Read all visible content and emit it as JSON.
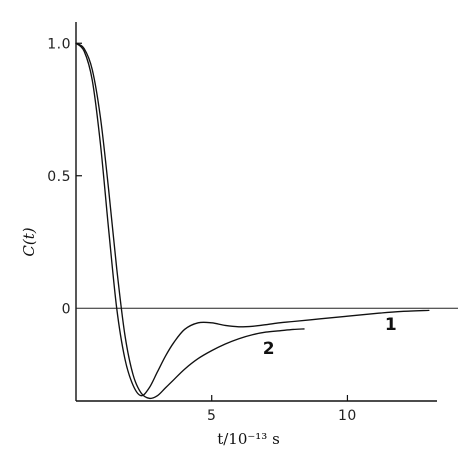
{
  "chart_data": {
    "type": "line",
    "title": "",
    "xlabel": "t/10⁻¹³ s",
    "ylabel": "C(t)",
    "xlim": [
      0,
      13.3
    ],
    "ylim": [
      -0.35,
      1.05
    ],
    "grid": false,
    "x_ticks": [
      {
        "value": 5,
        "label": "5"
      },
      {
        "value": 10,
        "label": "10"
      }
    ],
    "y_ticks": [
      {
        "value": 1.0,
        "label": "1.0"
      },
      {
        "value": 0.5,
        "label": "0.5"
      },
      {
        "value": 0.0,
        "label": "0"
      }
    ],
    "series": [
      {
        "name": "1",
        "x": [
          0,
          0.3,
          0.6,
          0.9,
          1.2,
          1.5,
          1.8,
          2.1,
          2.4,
          2.7,
          3.0,
          3.3,
          3.6,
          4.0,
          4.5,
          5.0,
          5.5,
          6.0,
          6.5,
          7.0,
          7.5,
          8.0,
          9.0,
          10.0,
          11.0,
          12.0,
          13.0
        ],
        "y": [
          1.0,
          0.97,
          0.86,
          0.62,
          0.3,
          0.0,
          -0.19,
          -0.29,
          -0.33,
          -0.3,
          -0.24,
          -0.18,
          -0.13,
          -0.08,
          -0.055,
          -0.055,
          -0.065,
          -0.07,
          -0.068,
          -0.062,
          -0.055,
          -0.05,
          -0.04,
          -0.03,
          -0.02,
          -0.012,
          -0.008
        ]
      },
      {
        "name": "2",
        "x": [
          0,
          0.3,
          0.6,
          0.9,
          1.2,
          1.5,
          1.8,
          2.1,
          2.4,
          2.7,
          3.0,
          3.3,
          3.6,
          4.0,
          4.5,
          5.0,
          5.5,
          6.0,
          6.5,
          7.0,
          7.5,
          8.0,
          8.4
        ],
        "y": [
          1.0,
          0.98,
          0.9,
          0.72,
          0.45,
          0.15,
          -0.1,
          -0.25,
          -0.32,
          -0.34,
          -0.33,
          -0.3,
          -0.27,
          -0.23,
          -0.19,
          -0.16,
          -0.135,
          -0.115,
          -0.1,
          -0.09,
          -0.085,
          -0.08,
          -0.078
        ]
      }
    ],
    "series_label_points": [
      {
        "series": "1",
        "x": 11.6,
        "y": -0.06
      },
      {
        "series": "2",
        "x": 7.1,
        "y": -0.15
      }
    ]
  }
}
